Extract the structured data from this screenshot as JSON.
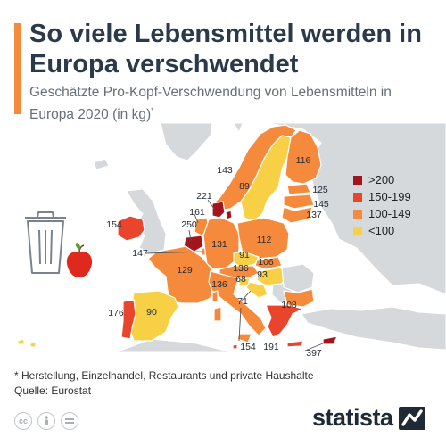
{
  "header": {
    "title": "So viele Lebensmittel werden in Europa verschwendet",
    "subtitle": "Geschätzte Pro-Kopf-Verschwendung von Lebensmitteln in Europa 2020 (in kg)",
    "subtitle_mark": "*"
  },
  "legend": [
    {
      "label": ">200",
      "color": "#a3141c"
    },
    {
      "label": "150-199",
      "color": "#e8452c"
    },
    {
      "label": "100-149",
      "color": "#f58a3c"
    },
    {
      "label": "<100",
      "color": "#f7d046"
    }
  ],
  "map_labels": {
    "sweden": "89",
    "norway": "143",
    "finland": "116",
    "estonia": "125",
    "latvia": "145",
    "lithuania": "137",
    "denmark": "221",
    "ireland": "154",
    "netherlands": "161",
    "belgium": "250",
    "luxembourg": "147",
    "germany": "131",
    "poland": "112",
    "france": "129",
    "czechia": "91",
    "slovakia": "106",
    "austria": "136",
    "slovenia": "68",
    "hungary": "93",
    "italy": "136",
    "croatia": "71",
    "spain": "90",
    "portugal": "176",
    "greece": "191",
    "malta": "154",
    "cyprus": "397",
    "bulgaria": "108"
  },
  "footnote": {
    "note": "* Herstellung, Einzelhandel, Restaurants und private Haushalte",
    "source": "Quelle: Eurostat"
  },
  "brand": {
    "name": "statista"
  }
}
